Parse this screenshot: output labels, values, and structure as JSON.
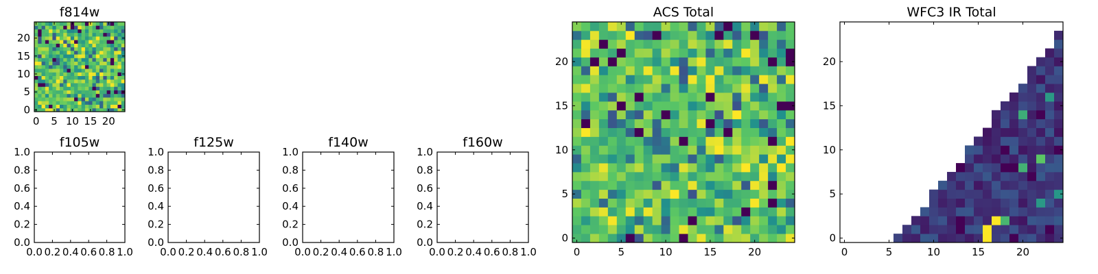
{
  "colormap": [
    "#440154",
    "#3b528b",
    "#21918c",
    "#5ec962",
    "#fde725"
  ],
  "chart_data": [
    {
      "type": "heatmap",
      "id": "f814w",
      "title": "f814w",
      "grid_size": 25,
      "value_range": [
        0,
        1
      ],
      "pattern": "noise_high",
      "xticks": [
        0,
        5,
        10,
        15,
        20
      ],
      "yticks": [
        0,
        5,
        10,
        15,
        20
      ],
      "xlim": [
        -0.5,
        24.5
      ],
      "ylim": [
        -0.5,
        24.5
      ]
    },
    {
      "type": "empty",
      "id": "f105w",
      "title": "f105w",
      "xticks": [
        "0.0",
        "0.2",
        "0.4",
        "0.6",
        "0.8",
        "1.0"
      ],
      "yticks": [
        "0.0",
        "0.2",
        "0.4",
        "0.6",
        "0.8",
        "1.0"
      ],
      "xlim": [
        0,
        1
      ],
      "ylim": [
        0,
        1
      ]
    },
    {
      "type": "empty",
      "id": "f125w",
      "title": "f125w",
      "xticks": [
        "0.0",
        "0.2",
        "0.4",
        "0.6",
        "0.8",
        "1.0"
      ],
      "yticks": [
        "0.0",
        "0.2",
        "0.4",
        "0.6",
        "0.8",
        "1.0"
      ],
      "xlim": [
        0,
        1
      ],
      "ylim": [
        0,
        1
      ]
    },
    {
      "type": "empty",
      "id": "f140w",
      "title": "f140w",
      "xticks": [
        "0.0",
        "0.2",
        "0.4",
        "0.6",
        "0.8",
        "1.0"
      ],
      "yticks": [
        "0.0",
        "0.2",
        "0.4",
        "0.6",
        "0.8",
        "1.0"
      ],
      "xlim": [
        0,
        1
      ],
      "ylim": [
        0,
        1
      ]
    },
    {
      "type": "empty",
      "id": "f160w",
      "title": "f160w",
      "xticks": [
        "0.0",
        "0.2",
        "0.4",
        "0.6",
        "0.8",
        "1.0"
      ],
      "yticks": [
        "0.0",
        "0.2",
        "0.4",
        "0.6",
        "0.8",
        "1.0"
      ],
      "xlim": [
        0,
        1
      ],
      "ylim": [
        0,
        1
      ]
    },
    {
      "type": "heatmap",
      "id": "acs-total",
      "title": "ACS Total",
      "grid_size": 25,
      "value_range": [
        0,
        1
      ],
      "pattern": "noise_high",
      "xticks": [
        0,
        5,
        10,
        15,
        20
      ],
      "yticks": [
        0,
        5,
        10,
        15,
        20
      ],
      "xlim": [
        -0.5,
        24.5
      ],
      "ylim": [
        -0.5,
        24.5
      ]
    },
    {
      "type": "heatmap",
      "id": "wfc3-ir-total",
      "title": "WFC3 IR Total",
      "grid_size": 25,
      "value_range": [
        0,
        1
      ],
      "pattern": "wedge_low",
      "masked_region": "upper-left triangle (no data, white)",
      "xticks": [
        0,
        5,
        10,
        15,
        20
      ],
      "yticks": [
        0,
        5,
        10,
        15,
        20
      ],
      "xlim": [
        -0.5,
        24.5
      ],
      "ylim": [
        -0.5,
        24.5
      ]
    }
  ]
}
